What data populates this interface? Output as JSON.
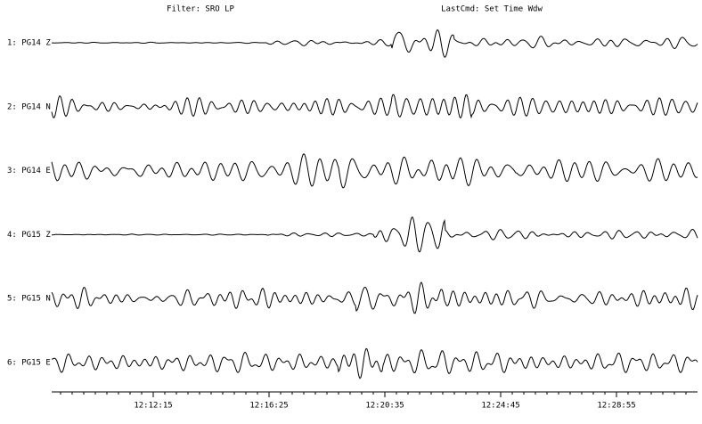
{
  "header": {
    "filter": "Filter: SRO LP",
    "last_command": "LastCmd: Set Time Wdw"
  },
  "traces": [
    "1: PG14 Z",
    "2: PG14 N",
    "3: PG14 E",
    "4: PG15 Z",
    "5: PG15 N",
    "6: PG15 E"
  ],
  "time_axis": {
    "labels": [
      "12:12:15",
      "12:16:25",
      "12:20:35",
      "12:24:45",
      "12:28:55"
    ]
  }
}
